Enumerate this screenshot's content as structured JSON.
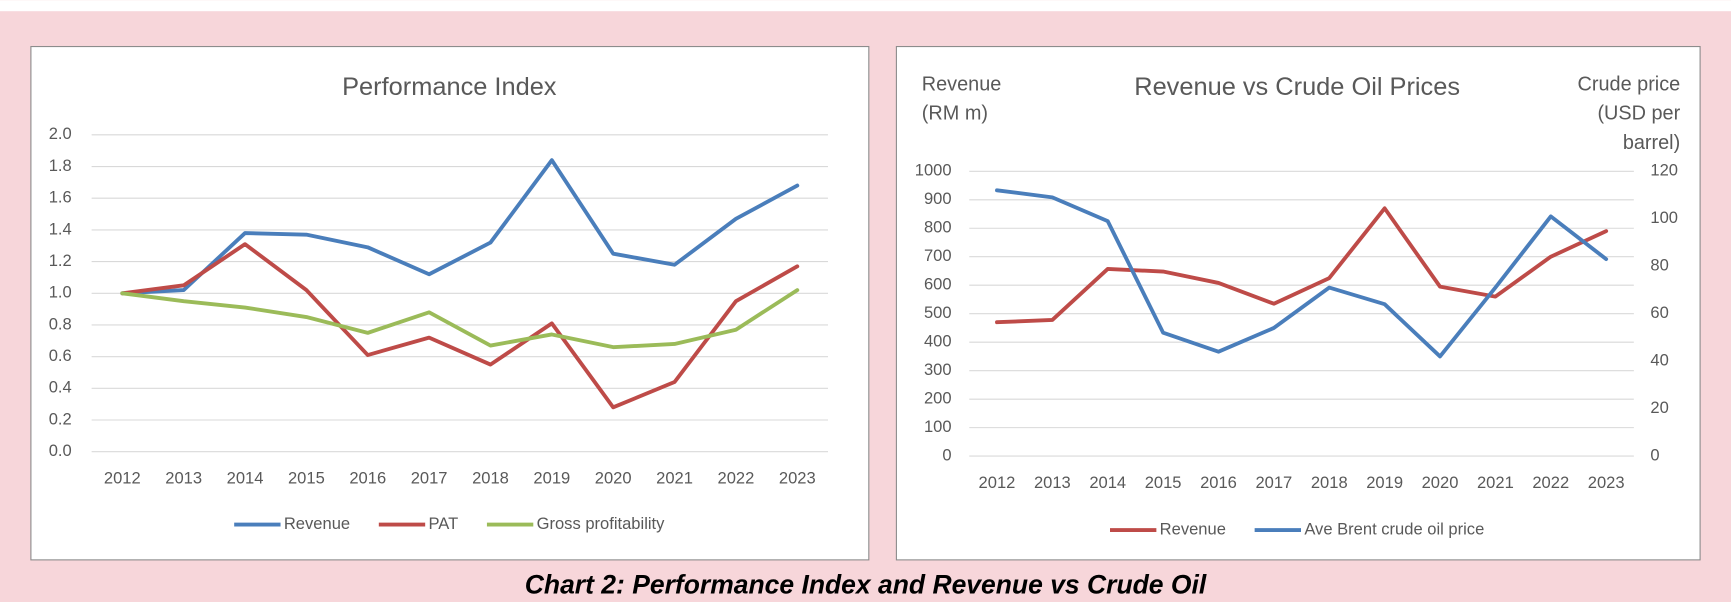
{
  "caption": "Chart 2: Performance Index and Revenue vs Crude Oil",
  "chart_data": [
    {
      "type": "line",
      "title": "Performance Index",
      "categories": [
        "2012",
        "2013",
        "2014",
        "2015",
        "2016",
        "2017",
        "2018",
        "2019",
        "2020",
        "2021",
        "2022",
        "2023"
      ],
      "ylim": [
        0,
        2
      ],
      "yticks": [
        {
          "value": 0,
          "label": "0.0"
        },
        {
          "value": 0.2,
          "label": "0.2"
        },
        {
          "value": 0.4,
          "label": "0.4"
        },
        {
          "value": 0.6,
          "label": "0.6"
        },
        {
          "value": 0.8,
          "label": "0.8"
        },
        {
          "value": 1,
          "label": "1.0"
        },
        {
          "value": 1.2,
          "label": "1.2"
        },
        {
          "value": 1.4,
          "label": "1.4"
        },
        {
          "value": 1.6,
          "label": "1.6"
        },
        {
          "value": 1.8,
          "label": "1.8"
        },
        {
          "value": 2,
          "label": "2.0"
        }
      ],
      "grid": true,
      "legend": "bottom",
      "series": [
        {
          "name": "Revenue",
          "color": "#4a7ebb",
          "values": [
            1.0,
            1.02,
            1.38,
            1.37,
            1.29,
            1.12,
            1.32,
            1.84,
            1.25,
            1.18,
            1.47,
            1.68
          ]
        },
        {
          "name": "PAT",
          "color": "#be4b48",
          "values": [
            1.0,
            1.05,
            1.31,
            1.02,
            0.61,
            0.72,
            0.55,
            0.81,
            0.28,
            0.44,
            0.95,
            1.17
          ]
        },
        {
          "name": "Gross profitability",
          "color": "#9bbb59",
          "values": [
            1.0,
            0.95,
            0.91,
            0.85,
            0.75,
            0.88,
            0.67,
            0.74,
            0.66,
            0.68,
            0.77,
            1.02
          ]
        }
      ]
    },
    {
      "type": "line",
      "title": "Revenue vs Crude Oil Prices",
      "y_label": [
        "Revenue",
        "(RM m)"
      ],
      "y2_label": [
        "Crude price",
        "(USD per",
        "barrel)"
      ],
      "categories": [
        "2012",
        "2013",
        "2014",
        "2015",
        "2016",
        "2017",
        "2018",
        "2019",
        "2020",
        "2021",
        "2022",
        "2023"
      ],
      "ylim": [
        0,
        1000
      ],
      "yticks": [
        0,
        100,
        200,
        300,
        400,
        500,
        600,
        700,
        800,
        900,
        1000
      ],
      "y2lim": [
        0,
        120
      ],
      "y2ticks": [
        0,
        20,
        40,
        60,
        80,
        100,
        120
      ],
      "grid": true,
      "legend": "bottom",
      "series": [
        {
          "name": "Revenue",
          "color": "#be4b48",
          "values": [
            470,
            478,
            657,
            648,
            608,
            535,
            625,
            870,
            595,
            560,
            700,
            790
          ]
        },
        {
          "name": "Ave Brent crude oil price",
          "color": "#4a7ebb",
          "axis": "y2",
          "values": [
            112,
            109,
            99,
            52,
            44,
            54,
            71,
            64,
            42,
            71,
            101,
            83
          ]
        }
      ]
    }
  ]
}
